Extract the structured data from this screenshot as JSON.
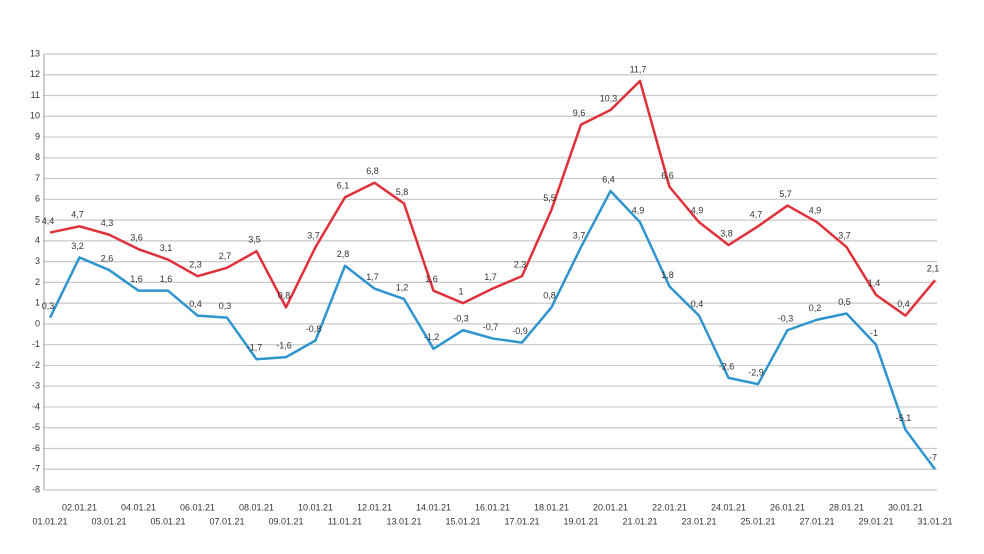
{
  "chart_data": {
    "type": "line",
    "categories": [
      "01.01.21",
      "02.01.21",
      "03.01.21",
      "04.01.21",
      "05.01.21",
      "06.01.21",
      "07.01.21",
      "08.01.21",
      "09.01.21",
      "10.01.21",
      "11.01.21",
      "12.01.21",
      "13.01.21",
      "14.01.21",
      "15.01.21",
      "16.01.21",
      "17.01.21",
      "18.01.21",
      "19.01.21",
      "20.01.21",
      "21.01.21",
      "22.01.21",
      "23.01.21",
      "24.01.21",
      "25.01.21",
      "26.01.21",
      "27.01.21",
      "28.01.21",
      "29.01.21",
      "30.01.21",
      "31.01.21"
    ],
    "series": [
      {
        "color": "#e0313b",
        "values": [
          4.4,
          4.7,
          4.3,
          3.6,
          3.1,
          2.3,
          2.7,
          3.5,
          0.8,
          3.7,
          6.1,
          6.8,
          5.8,
          1.6,
          1,
          1.7,
          2.3,
          5.5,
          9.6,
          10.3,
          11.7,
          6.6,
          4.9,
          3.8,
          4.7,
          5.7,
          4.9,
          3.7,
          1.4,
          0.4,
          2.1
        ],
        "value_labels": [
          "4,4",
          "4,7",
          "4,3",
          "3,6",
          "3,1",
          "2,3",
          "2,7",
          "3,5",
          "0,8",
          "3,7",
          "6,1",
          "6,8",
          "5,8",
          "1,6",
          "1",
          "1,7",
          "2,3",
          "5,5",
          "9,6",
          "10,3",
          "11,7",
          "6,6",
          "4,9",
          "3,8",
          "4,7",
          "5,7",
          "4,9",
          "3,7",
          "1,4",
          "0,4",
          "2,1"
        ]
      },
      {
        "color": "#2f95cf",
        "values": [
          0.3,
          3.2,
          2.6,
          1.6,
          1.6,
          0.4,
          0.3,
          -1.7,
          -1.6,
          -0.8,
          2.8,
          1.7,
          1.2,
          -1.2,
          -0.3,
          -0.7,
          -0.9,
          0.8,
          3.7,
          6.4,
          4.9,
          1.8,
          0.4,
          -2.6,
          -2.9,
          -0.3,
          0.2,
          0.5,
          -1,
          -5.1,
          -7
        ],
        "value_labels": [
          "0,3",
          "3,2",
          "2,6",
          "1,6",
          "1,6",
          "0,4",
          "0,3",
          "-1,7",
          "-1,6",
          "-0,8",
          "2,8",
          "1,7",
          "1,2",
          "-1,2",
          "-0,3",
          "-0,7",
          "-0,9",
          "0,8",
          "3,7",
          "6,4",
          "4,9",
          "1,8",
          "0,4",
          "-2,6",
          "-2,9",
          "-0,3",
          "0,2",
          "0,5",
          "-1",
          "-5,1",
          "-7"
        ]
      }
    ],
    "ylim": [
      -8,
      13
    ],
    "yticks": [
      -8,
      -7,
      -6,
      -5,
      -4,
      -3,
      -2,
      -1,
      0,
      1,
      2,
      3,
      4,
      5,
      6,
      7,
      8,
      9,
      10,
      11,
      12,
      13
    ],
    "grid": true
  }
}
